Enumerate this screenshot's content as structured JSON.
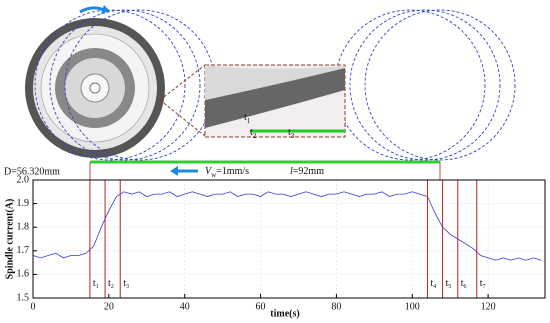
{
  "chart_data": {
    "type": "line",
    "xlabel": "time(s)",
    "ylabel": "Spindle current(A)",
    "xlim": [
      0,
      135
    ],
    "ylim": [
      1.5,
      2.0
    ],
    "xticks": [
      0,
      20,
      40,
      60,
      80,
      100,
      120
    ],
    "yticks": [
      1.5,
      1.6,
      1.7,
      1.8,
      1.9,
      {
        "value": 2,
        "label": "2.0"
      }
    ],
    "grid": true,
    "color": "#3b3bd6",
    "x": [
      0,
      2,
      4,
      6,
      8,
      10,
      12,
      14,
      16,
      18,
      20,
      22,
      24,
      26,
      28,
      30,
      32,
      34,
      36,
      38,
      40,
      42,
      44,
      46,
      48,
      50,
      52,
      54,
      56,
      58,
      60,
      62,
      64,
      66,
      68,
      70,
      72,
      74,
      76,
      78,
      80,
      82,
      84,
      86,
      88,
      90,
      92,
      94,
      96,
      98,
      100,
      102,
      104,
      106,
      108,
      110,
      112,
      114,
      116,
      118,
      120,
      122,
      124,
      126,
      128,
      130,
      132,
      134
    ],
    "values": [
      1.68,
      1.67,
      1.68,
      1.69,
      1.67,
      1.68,
      1.68,
      1.69,
      1.72,
      1.8,
      1.87,
      1.93,
      1.95,
      1.94,
      1.95,
      1.93,
      1.94,
      1.94,
      1.95,
      1.93,
      1.94,
      1.95,
      1.94,
      1.93,
      1.94,
      1.94,
      1.95,
      1.93,
      1.94,
      1.94,
      1.93,
      1.95,
      1.94,
      1.94,
      1.93,
      1.94,
      1.95,
      1.94,
      1.93,
      1.94,
      1.94,
      1.95,
      1.94,
      1.93,
      1.94,
      1.94,
      1.95,
      1.93,
      1.94,
      1.94,
      1.95,
      1.94,
      1.93,
      1.86,
      1.8,
      1.77,
      1.75,
      1.73,
      1.71,
      1.68,
      1.67,
      1.66,
      1.67,
      1.66,
      1.67,
      1.66,
      1.67,
      1.66
    ],
    "markers": [
      {
        "label": "t",
        "sub": "1",
        "x": 15
      },
      {
        "label": "t",
        "sub": "2",
        "x": 19
      },
      {
        "label": "t",
        "sub": "3",
        "x": 23
      },
      {
        "label": "t",
        "sub": "4",
        "x": 104
      },
      {
        "label": "t",
        "sub": "5",
        "x": 108
      },
      {
        "label": "t",
        "sub": "6",
        "x": 112
      },
      {
        "label": "t",
        "sub": "7",
        "x": 117
      }
    ],
    "diameter_label": "D=56.320mm",
    "velocity": {
      "main": "V",
      "sub": "w",
      "rest": "=1mm/s"
    },
    "length": {
      "var": "l",
      "rest": "=92mm"
    },
    "inset_labels": [
      {
        "label": "t",
        "sub": "1"
      },
      {
        "label": "t",
        "sub": "2"
      },
      {
        "label": "t",
        "sub": "3"
      }
    ]
  }
}
